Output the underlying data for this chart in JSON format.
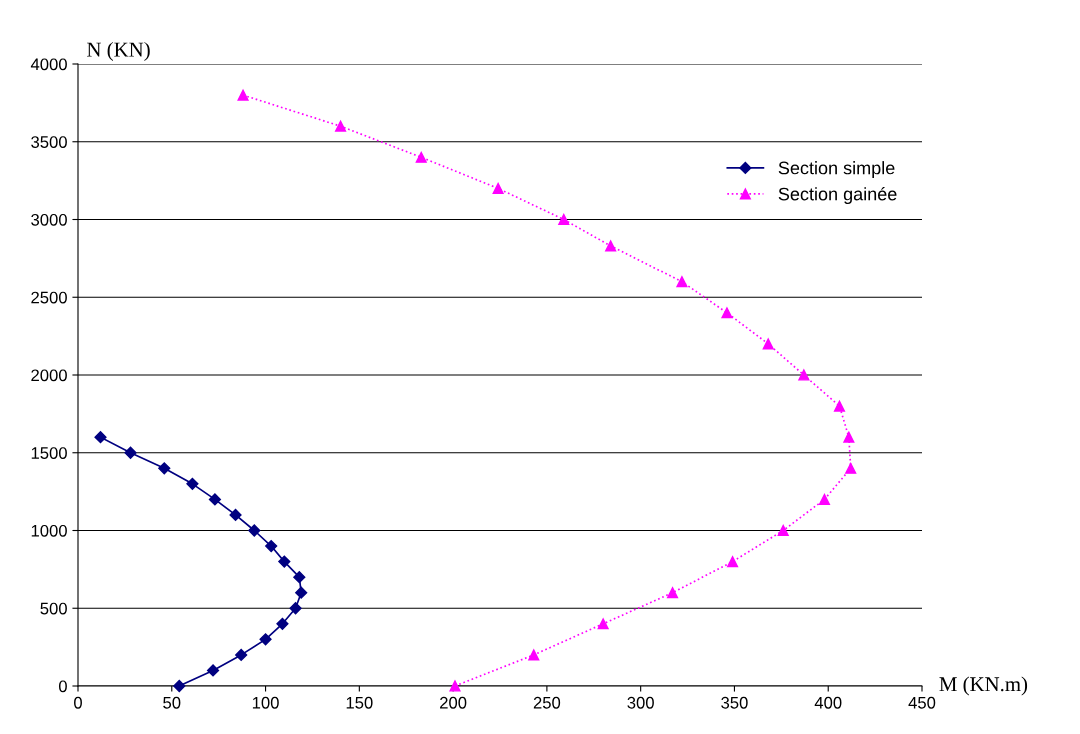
{
  "chart_data": {
    "type": "line",
    "xlabel": "M (KN.m)",
    "ylabel": "N (KN)",
    "xlim": [
      0,
      450
    ],
    "xticks": [
      0,
      50,
      100,
      150,
      200,
      250,
      300,
      350,
      400,
      450
    ],
    "ylim": [
      0,
      4000
    ],
    "yticks": [
      0,
      500,
      1000,
      1500,
      2000,
      2500,
      3000,
      3500,
      4000
    ],
    "grid": "y",
    "legend": "top right",
    "series": [
      {
        "name": "Section simple",
        "color": "#000080",
        "marker": "diamond",
        "line_style": "solid",
        "x": [
          12,
          28,
          46,
          61,
          73,
          84,
          94,
          103,
          110,
          118,
          119,
          116,
          109,
          100,
          87,
          72,
          54
        ],
        "values": [
          1600,
          1500,
          1400,
          1300,
          1200,
          1100,
          1000,
          900,
          800,
          700,
          600,
          500,
          400,
          300,
          200,
          100,
          0
        ]
      },
      {
        "name": "Section gainée",
        "color": "#ff00ff",
        "marker": "triangle",
        "line_style": "dotted",
        "x": [
          88,
          140,
          183,
          224,
          259,
          284,
          322,
          346,
          368,
          387,
          406,
          411,
          412,
          398,
          376,
          349,
          317,
          280,
          243,
          201
        ],
        "values": [
          3800,
          3600,
          3400,
          3200,
          3000,
          2830,
          2600,
          2400,
          2200,
          2000,
          1800,
          1600,
          1400,
          1200,
          1000,
          800,
          600,
          400,
          200,
          0
        ]
      }
    ]
  }
}
